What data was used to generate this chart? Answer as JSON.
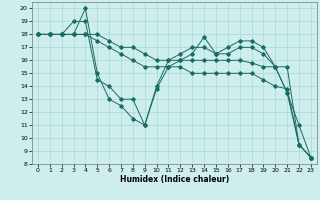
{
  "xlabel": "Humidex (Indice chaleur)",
  "bg_color": "#ceeeed",
  "grid_color": "#aad8d4",
  "line_color": "#1a6b60",
  "xlim": [
    -0.5,
    23.5
  ],
  "ylim": [
    8,
    20.5
  ],
  "yticks": [
    8,
    9,
    10,
    11,
    12,
    13,
    14,
    15,
    16,
    17,
    18,
    19,
    20
  ],
  "xticks": [
    0,
    1,
    2,
    3,
    4,
    5,
    6,
    7,
    8,
    9,
    10,
    11,
    12,
    13,
    14,
    15,
    16,
    17,
    18,
    19,
    20,
    21,
    22,
    23
  ],
  "lines": [
    {
      "x": [
        0,
        1,
        2,
        3,
        4,
        5,
        6,
        7,
        8,
        9,
        10,
        11,
        12,
        13,
        14,
        15,
        16,
        17,
        18,
        19,
        20,
        21,
        22,
        23
      ],
      "y": [
        18,
        18,
        18,
        18,
        20,
        15,
        13,
        12.5,
        11.5,
        11,
        13.8,
        15.5,
        16,
        16.5,
        17.8,
        16.5,
        17,
        17.5,
        17.5,
        17,
        15.5,
        13.5,
        9.5,
        8.5
      ]
    },
    {
      "x": [
        0,
        1,
        2,
        3,
        4,
        5,
        6,
        7,
        8,
        9,
        10,
        11,
        12,
        13,
        14,
        15,
        16,
        17,
        18,
        19,
        20,
        21,
        22,
        23
      ],
      "y": [
        18,
        18,
        18,
        19,
        19,
        14.5,
        14,
        13,
        13,
        11,
        14,
        16,
        16.5,
        17,
        17,
        16.5,
        16.5,
        17,
        17,
        16.5,
        15.5,
        13.5,
        11,
        8.5
      ]
    },
    {
      "x": [
        0,
        1,
        2,
        3,
        4,
        5,
        6,
        7,
        8,
        9,
        10,
        11,
        12,
        13,
        14,
        15,
        16,
        17,
        18,
        19,
        20,
        21,
        22,
        23
      ],
      "y": [
        18,
        18,
        18,
        18,
        18,
        18,
        17.5,
        17,
        17,
        16.5,
        16,
        16,
        16,
        16,
        16,
        16,
        16,
        16,
        15.8,
        15.5,
        15.5,
        15.5,
        9.5,
        8.5
      ]
    },
    {
      "x": [
        0,
        1,
        2,
        3,
        4,
        5,
        6,
        7,
        8,
        9,
        10,
        11,
        12,
        13,
        14,
        15,
        16,
        17,
        18,
        19,
        20,
        21,
        22,
        23
      ],
      "y": [
        18,
        18,
        18,
        18,
        18,
        17.5,
        17,
        16.5,
        16,
        15.5,
        15.5,
        15.5,
        15.5,
        15,
        15,
        15,
        15,
        15,
        15,
        14.5,
        14,
        13.8,
        9.5,
        8.5
      ]
    }
  ]
}
